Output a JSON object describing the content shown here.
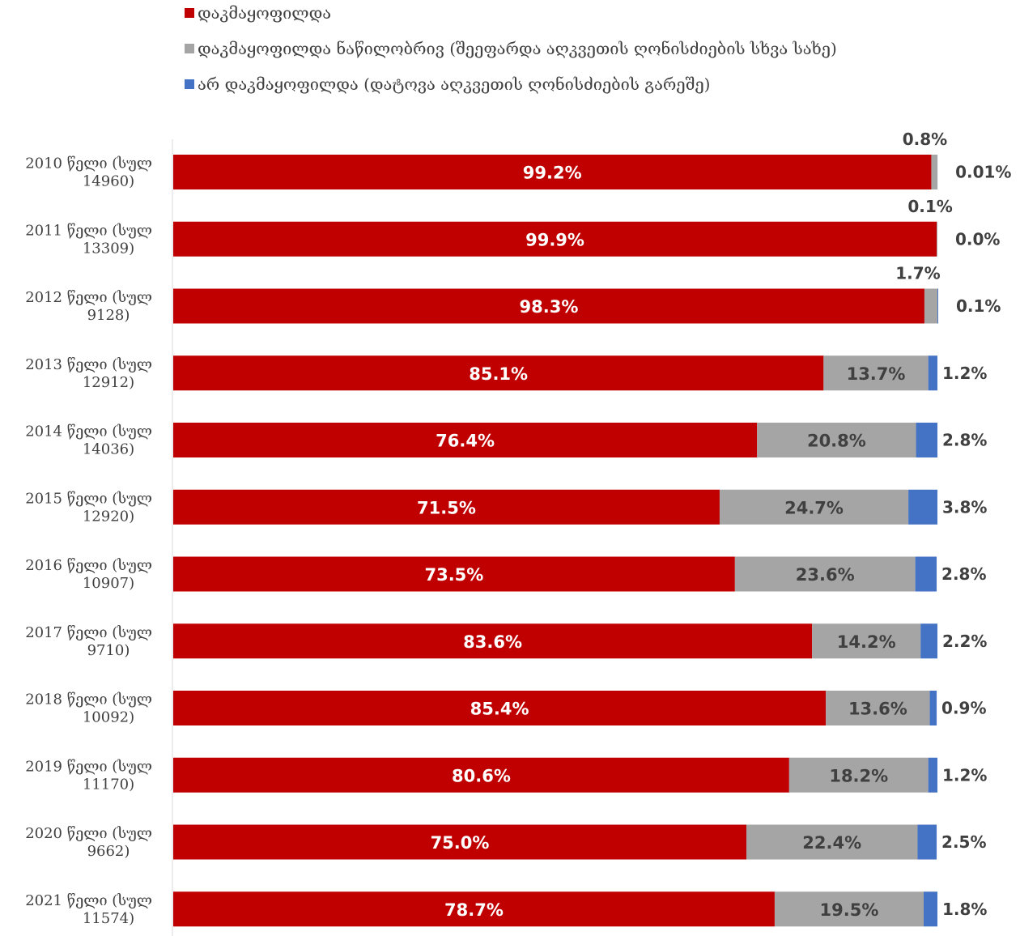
{
  "chart_data": {
    "type": "bar",
    "orientation": "horizontal",
    "stacked": true,
    "normalized_percent": true,
    "categories": [
      "2010 წელი (სულ 14960)",
      "2011 წელი (სულ 13309)",
      "2012 წელი (სულ 9128)",
      "2013 წელი (სულ 12912)",
      "2014 წელი (სულ 14036)",
      "2015 წელი (სულ 12920)",
      "2016 წელი (სულ 10907)",
      "2017 წელი (სულ 9710)",
      "2018 წელი (სულ 10092)",
      "2019 წელი (სულ 11170)",
      "2020 წელი (სულ 9662)",
      "2021 წელი (სულ 11574)"
    ],
    "category_lines": [
      [
        "2010 წელი (სულ",
        "14960)"
      ],
      [
        "2011 წელი (სულ",
        "13309)"
      ],
      [
        "2012 წელი (სულ",
        "9128)"
      ],
      [
        "2013 წელი (სულ",
        "12912)"
      ],
      [
        "2014 წელი (სულ",
        "14036)"
      ],
      [
        "2015 წელი (სულ",
        "12920)"
      ],
      [
        "2016 წელი (სულ",
        "10907)"
      ],
      [
        "2017 წელი (სულ",
        "9710)"
      ],
      [
        "2018 წელი (სულ",
        "10092)"
      ],
      [
        "2019 წელი (სულ",
        "11170)"
      ],
      [
        "2020 წელი (სულ",
        "9662)"
      ],
      [
        "2021 წელი (სულ",
        "11574)"
      ]
    ],
    "series": [
      {
        "name": "დაკმაყოფილდა",
        "color": "#c00000",
        "values": [
          99.2,
          99.9,
          98.3,
          85.1,
          76.4,
          71.5,
          73.5,
          83.6,
          85.4,
          80.6,
          75.0,
          78.7
        ],
        "labels": [
          "99.2%",
          "99.9%",
          "98.3%",
          "85.1%",
          "76.4%",
          "71.5%",
          "73.5%",
          "83.6%",
          "85.4%",
          "80.6%",
          "75.0%",
          "78.7%"
        ]
      },
      {
        "name": "დაკმაყოფილდა ნაწილობრივ (შეეფარდა აღკვეთის ღონისძიების სხვა სახე)",
        "color": "#a5a5a5",
        "values": [
          0.8,
          0.1,
          1.7,
          13.7,
          20.8,
          24.7,
          23.6,
          14.2,
          13.6,
          18.2,
          22.4,
          19.5
        ],
        "labels": [
          "0.8%",
          "0.1%",
          "1.7%",
          "13.7%",
          "20.8%",
          "24.7%",
          "23.6%",
          "14.2%",
          "13.6%",
          "18.2%",
          "22.4%",
          "19.5%"
        ]
      },
      {
        "name": "არ დაკმაყოფილდა (დატოვა აღკვეთის ღონისძიების გარეშე)",
        "color": "#4472c4",
        "values": [
          0.01,
          0.0,
          0.1,
          1.2,
          2.8,
          3.8,
          2.8,
          2.2,
          0.9,
          1.2,
          2.5,
          1.8
        ],
        "labels": [
          "0.01%",
          "0.0%",
          "0.1%",
          "1.2%",
          "2.8%",
          "3.8%",
          "2.8%",
          "2.2%",
          "0.9%",
          "1.2%",
          "2.5%",
          "1.8%"
        ]
      }
    ],
    "xlim": [
      0,
      100
    ],
    "grid": false,
    "legend_position": "top-center"
  }
}
